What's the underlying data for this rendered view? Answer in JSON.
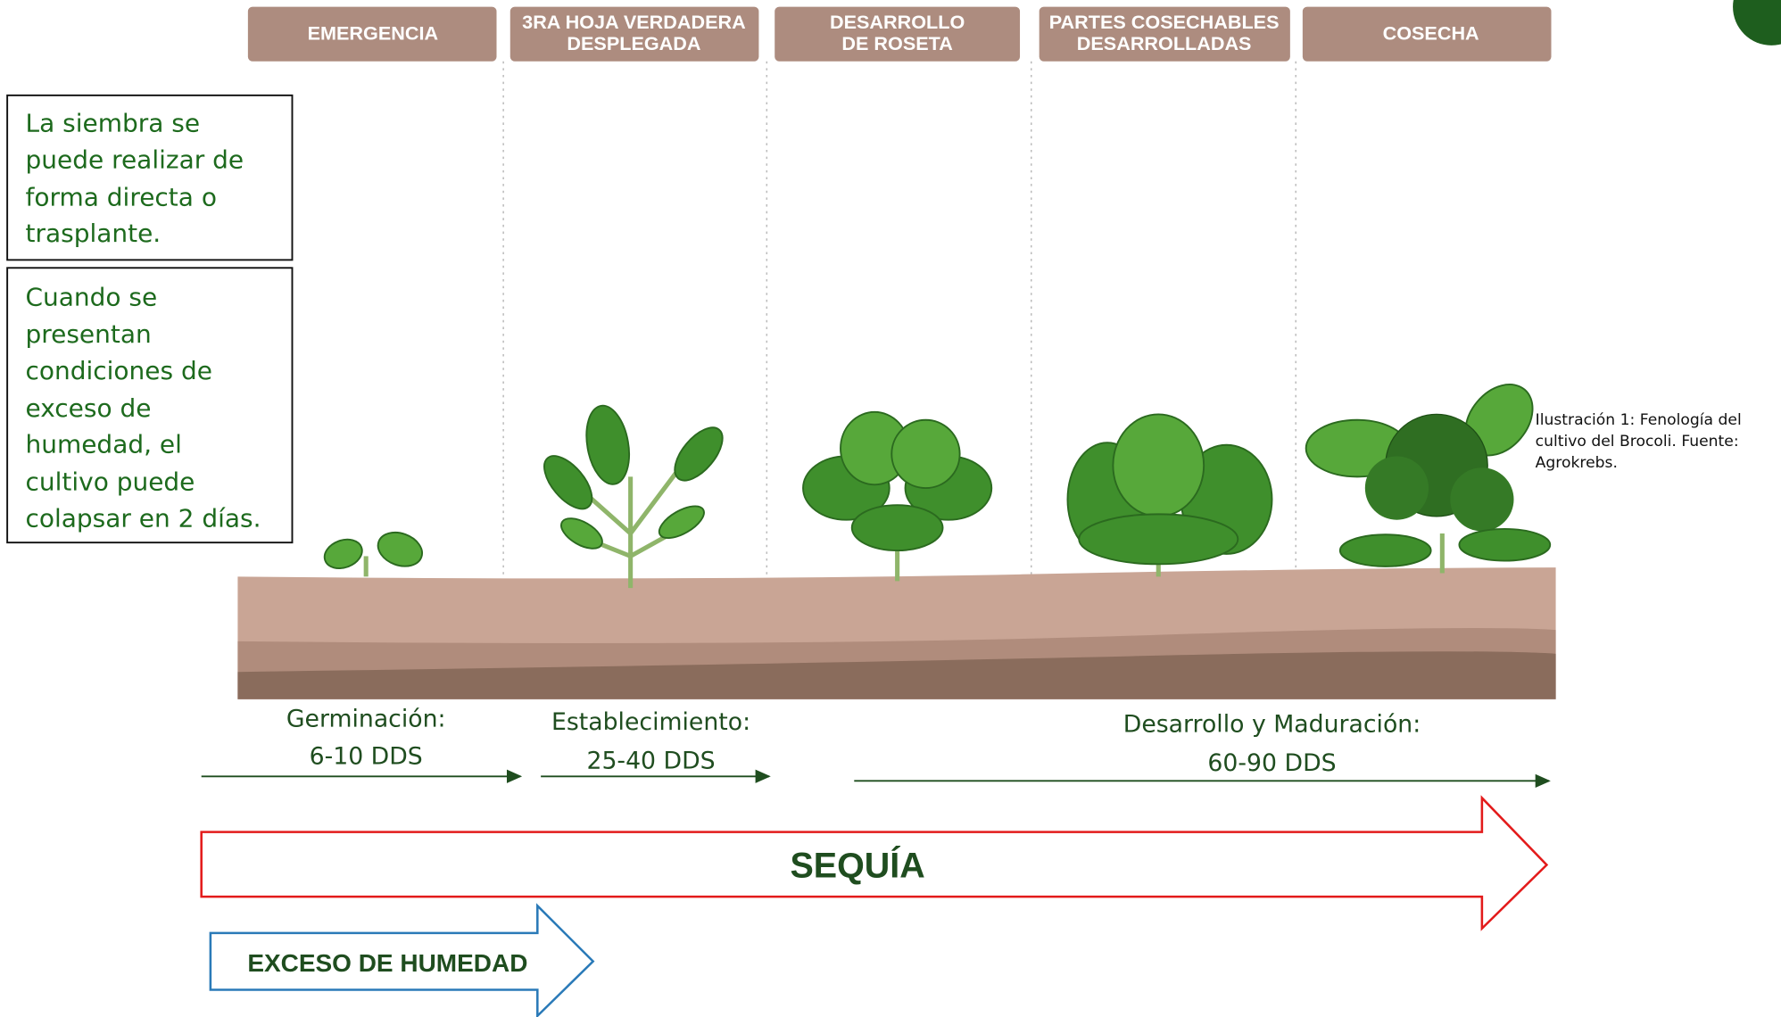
{
  "stages": [
    {
      "lines": [
        "EMERGENCIA"
      ]
    },
    {
      "lines": [
        "3RA HOJA VERDADERA",
        "DESPLEGADA"
      ]
    },
    {
      "lines": [
        "DESARROLLO",
        "DE ROSETA"
      ]
    },
    {
      "lines": [
        "PARTES COSECHABLES",
        "DESARROLLADAS"
      ]
    },
    {
      "lines": [
        "COSECHA"
      ]
    }
  ],
  "notes": [
    {
      "lines": [
        "La siembra    se",
        "puede    realizar de",
        "forma directa o",
        "trasplante."
      ]
    },
    {
      "lines": [
        "Cuando se",
        "presentan",
        "condiciones de",
        "exceso de",
        "humedad, el",
        "cultivo puede",
        "colapsar en 2 días."
      ]
    }
  ],
  "phases": [
    {
      "label": "Germinación:",
      "duration": "6-10 DDS"
    },
    {
      "label": "Establecimiento:",
      "duration": "25-40 DDS"
    },
    {
      "label": "Desarrollo y Maduración:",
      "duration": "60-90 DDS"
    }
  ],
  "drought_arrow": "SEQUÍA",
  "humidity_arrow": "EXCESO DE HUMEDAD",
  "caption": {
    "lines": [
      "Ilustración 1: Fenología del",
      "cultivo del Brocoli. Fuente:",
      "Agrokrebs."
    ]
  }
}
